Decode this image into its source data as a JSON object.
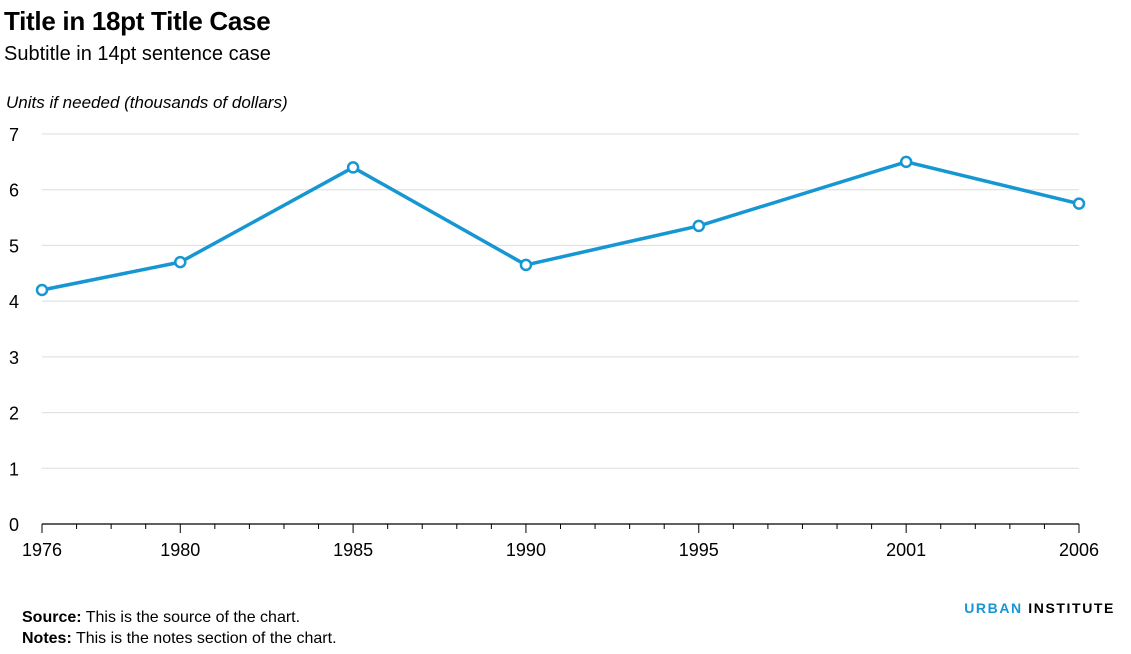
{
  "header": {
    "title": "Title in 18pt Title Case",
    "subtitle": "Subtitle in 14pt sentence case",
    "units": "Units if needed (thousands of dollars)"
  },
  "footer": {
    "source_label": "Source:",
    "source_text": " This is the source of the chart.",
    "notes_label": "Notes:",
    "notes_text": " This is the notes section of the chart.",
    "brand_part1": "URBAN",
    "brand_part2": "INSTITUTE"
  },
  "colors": {
    "line": "#1696d2",
    "grid": "#dedddd",
    "axis": "#000000",
    "brand": "#1696d2"
  },
  "chart_data": {
    "type": "line",
    "title": "Title in 18pt Title Case",
    "subtitle": "Subtitle in 14pt sentence case",
    "ylabel": "Units if needed (thousands of dollars)",
    "xlabel": "",
    "xlim": [
      1976,
      2006
    ],
    "ylim": [
      0,
      7
    ],
    "yticks": [
      0,
      1,
      2,
      3,
      4,
      5,
      6,
      7
    ],
    "xtick_labels": [
      1976,
      1980,
      1985,
      1990,
      1995,
      2001,
      2006
    ],
    "grid": true,
    "series": [
      {
        "x": [
          1976,
          1980,
          1985,
          1990,
          1995,
          2001,
          2006
        ],
        "y": [
          4.2,
          4.7,
          6.4,
          4.65,
          5.35,
          6.5,
          5.75
        ]
      }
    ]
  }
}
